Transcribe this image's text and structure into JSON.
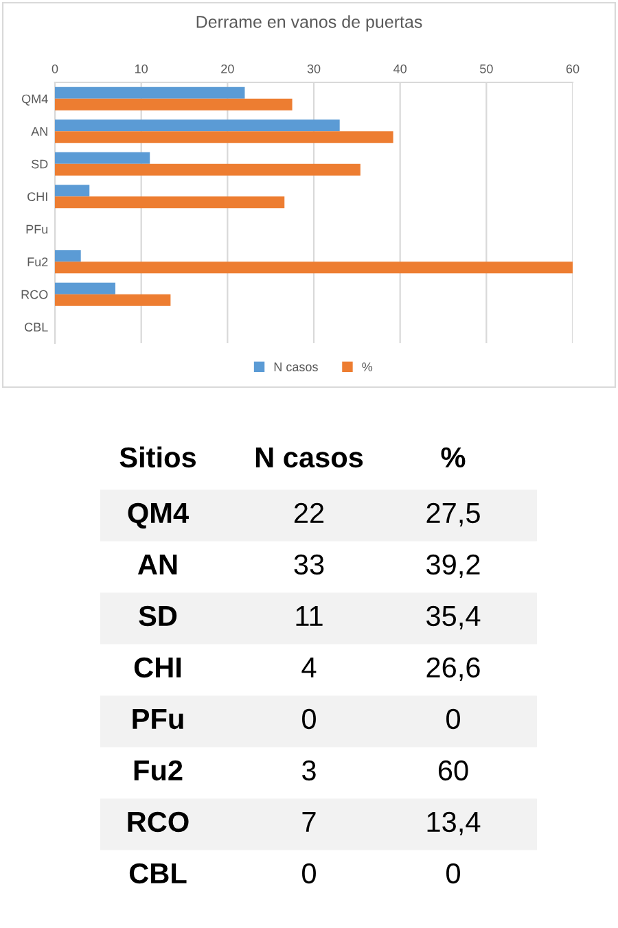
{
  "chart_data": [
    {
      "type": "bar",
      "orientation": "horizontal",
      "title": "Derrame en vanos de puertas",
      "categories": [
        "QM4",
        "AN",
        "SD",
        "CHI",
        "PFu",
        "Fu2",
        "RCO",
        "CBL"
      ],
      "series": [
        {
          "name": "N casos",
          "color": "#5b9bd5",
          "values": [
            22,
            33,
            11,
            4,
            0,
            3,
            7,
            0
          ]
        },
        {
          "name": "%",
          "color": "#ed7d31",
          "values": [
            27.5,
            39.2,
            35.4,
            26.6,
            0,
            60,
            13.4,
            0
          ]
        }
      ],
      "xlim": [
        0,
        60
      ],
      "xticks": [
        0,
        10,
        20,
        30,
        40,
        50,
        60
      ],
      "grid": "x",
      "legend": "bottom"
    },
    {
      "type": "other",
      "annotations": [
        "Sitios",
        "N casos",
        "%",
        "QM4",
        "22",
        "27,5",
        "AN",
        "33",
        "39,2",
        "SD",
        "11",
        "35,4",
        "CHI",
        "4",
        "26,6",
        "PFu",
        "0",
        "0",
        "Fu2",
        "3",
        "60",
        "RCO",
        "7",
        "13,4",
        "CBL",
        "0",
        "0"
      ]
    }
  ]
}
